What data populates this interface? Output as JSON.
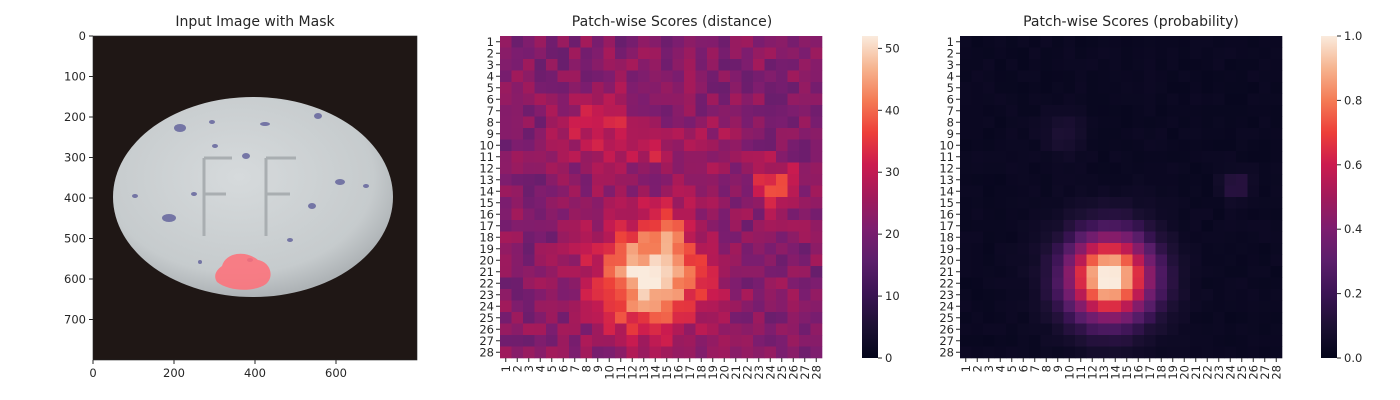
{
  "chart_data": [
    {
      "type": "image",
      "title": "Input Image with Mask",
      "x_ticks": [
        "0",
        "200",
        "400",
        "600"
      ],
      "x_tick_values": [
        0,
        200,
        400,
        600
      ],
      "y_ticks": [
        "0",
        "100",
        "200",
        "300",
        "400",
        "500",
        "600",
        "700"
      ],
      "y_tick_values": [
        0,
        100,
        200,
        300,
        400,
        500,
        600,
        700
      ],
      "xlim": [
        0,
        800
      ],
      "ylim": [
        800,
        0
      ],
      "image_content": {
        "background_color": "#1f1715",
        "pill_color": "#c9ced0",
        "imprint_text": "FF",
        "mask_color": "#ff6e78"
      }
    },
    {
      "type": "heatmap",
      "title": "Patch-wise Scores (distance)",
      "rows": 28,
      "cols": 28,
      "x_ticks": [
        "1",
        "2",
        "3",
        "4",
        "5",
        "6",
        "7",
        "8",
        "9",
        "10",
        "11",
        "12",
        "13",
        "14",
        "15",
        "16",
        "17",
        "18",
        "19",
        "20",
        "21",
        "22",
        "23",
        "24",
        "25",
        "26",
        "27",
        "28"
      ],
      "y_ticks": [
        "1",
        "2",
        "3",
        "4",
        "5",
        "6",
        "7",
        "8",
        "9",
        "10",
        "11",
        "12",
        "13",
        "14",
        "15",
        "16",
        "17",
        "18",
        "19",
        "20",
        "21",
        "22",
        "23",
        "24",
        "25",
        "26",
        "27",
        "28"
      ],
      "colorbar": {
        "ticks": [
          0,
          10,
          20,
          30,
          40,
          50
        ],
        "vmin": 0,
        "vmax": 52
      },
      "base_value": 22,
      "hotspots": [
        {
          "row": 21.5,
          "col": 13.5,
          "radius": 3.2,
          "amplitude": 30
        },
        {
          "row": 8.5,
          "col": 9.0,
          "radius": 2.2,
          "amplitude": 10
        },
        {
          "row": 10.0,
          "col": 13.5,
          "radius": 1.5,
          "amplitude": 9
        },
        {
          "row": 13.5,
          "col": 24.5,
          "radius": 1.4,
          "amplitude": 14
        },
        {
          "row": 17.0,
          "col": 15.0,
          "radius": 1.5,
          "amplitude": 7
        },
        {
          "row": 10.0,
          "col": 19.5,
          "radius": 2.0,
          "amplitude": 4
        }
      ]
    },
    {
      "type": "heatmap",
      "title": "Patch-wise Scores (probability)",
      "rows": 28,
      "cols": 28,
      "x_ticks": [
        "1",
        "2",
        "3",
        "4",
        "5",
        "6",
        "7",
        "8",
        "9",
        "10",
        "11",
        "12",
        "13",
        "14",
        "15",
        "16",
        "17",
        "18",
        "19",
        "20",
        "21",
        "22",
        "23",
        "24",
        "25",
        "26",
        "27",
        "28"
      ],
      "y_ticks": [
        "1",
        "2",
        "3",
        "4",
        "5",
        "6",
        "7",
        "8",
        "9",
        "10",
        "11",
        "12",
        "13",
        "14",
        "15",
        "16",
        "17",
        "18",
        "19",
        "20",
        "21",
        "22",
        "23",
        "24",
        "25",
        "26",
        "27",
        "28"
      ],
      "colorbar": {
        "ticks": [
          "0.0",
          "0.2",
          "0.4",
          "0.6",
          "0.8",
          "1.0"
        ],
        "vmin": 0,
        "vmax": 1
      },
      "base_value": 0.02,
      "hotspots": [
        {
          "row": 21.5,
          "col": 13.5,
          "radius": 2.6,
          "amplitude": 1.0
        },
        {
          "row": 9.0,
          "col": 9.5,
          "radius": 1.2,
          "amplitude": 0.08
        },
        {
          "row": 13.5,
          "col": 24.5,
          "radius": 0.8,
          "amplitude": 0.14
        }
      ]
    }
  ]
}
